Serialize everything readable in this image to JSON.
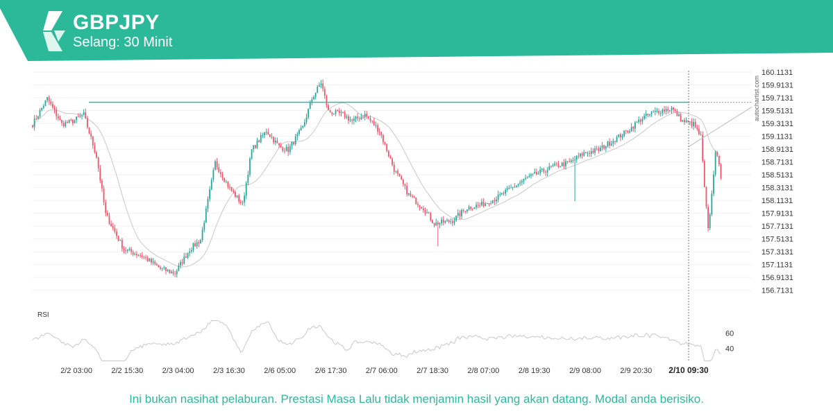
{
  "header": {
    "symbol": "GBPJPY",
    "interval": "Selang: 30 Minit"
  },
  "colors": {
    "brand": "#2bb99a",
    "bull": "#26a69a",
    "bear": "#ef5466",
    "level_line": "#2bb99a",
    "ma_line": "#c8c8c8",
    "rsi_line": "#c8c8c8",
    "text": "#333333"
  },
  "icons": {
    "logo": "autochartist-logo-icon"
  },
  "watermark": "autochartist.com",
  "disclaimer": "Ini bukan nasihat pelaburan. Prestasi Masa Lalu tidak menjamin hasil yang akan datang. Modal anda berisiko.",
  "chart_data": {
    "type": "candlestick",
    "symbol": "GBPJPY",
    "x_tick_labels": [
      "2/2 03:00",
      "2/2 15:30",
      "2/3 04:00",
      "2/3 16:30",
      "2/6 05:00",
      "2/6 17:30",
      "2/7 06:00",
      "2/7 18:30",
      "2/8 07:00",
      "2/8 19:30",
      "2/9 08:00",
      "2/9 20:30"
    ],
    "x_current_label": "2/10 09:30",
    "y_tick_labels": [
      "160.1131",
      "159.9131",
      "159.7131",
      "159.5131",
      "159.3131",
      "159.1131",
      "158.9131",
      "158.7131",
      "158.5131",
      "158.3131",
      "158.1131",
      "157.9131",
      "157.7131",
      "157.5131",
      "157.3131",
      "157.1131",
      "156.9131",
      "156.7131"
    ],
    "ylim": [
      156.6131,
      160.1131
    ],
    "level_line": 159.643,
    "current_price": 158.5,
    "close_path": [
      [
        0,
        159.3
      ],
      [
        8,
        159.7
      ],
      [
        16,
        159.3
      ],
      [
        22,
        159.35
      ],
      [
        28,
        159.45
      ],
      [
        35,
        158.8
      ],
      [
        40,
        157.9
      ],
      [
        50,
        157.35
      ],
      [
        60,
        157.25
      ],
      [
        70,
        157.05
      ],
      [
        78,
        156.98
      ],
      [
        86,
        157.35
      ],
      [
        92,
        157.5
      ],
      [
        100,
        158.7
      ],
      [
        108,
        158.3
      ],
      [
        115,
        158.05
      ],
      [
        120,
        158.9
      ],
      [
        128,
        159.2
      ],
      [
        135,
        158.95
      ],
      [
        140,
        158.9
      ],
      [
        148,
        159.25
      ],
      [
        153,
        159.7
      ],
      [
        158,
        159.95
      ],
      [
        162,
        159.5
      ],
      [
        170,
        159.45
      ],
      [
        175,
        159.35
      ],
      [
        182,
        159.45
      ],
      [
        190,
        159.2
      ],
      [
        198,
        158.6
      ],
      [
        206,
        158.2
      ],
      [
        214,
        158.0
      ],
      [
        220,
        157.75
      ],
      [
        230,
        157.8
      ],
      [
        238,
        158.0
      ],
      [
        246,
        158.05
      ],
      [
        254,
        158.15
      ],
      [
        262,
        158.3
      ],
      [
        270,
        158.45
      ],
      [
        278,
        158.55
      ],
      [
        286,
        158.65
      ],
      [
        294,
        158.7
      ],
      [
        302,
        158.85
      ],
      [
        310,
        158.9
      ],
      [
        318,
        159.05
      ],
      [
        326,
        159.2
      ],
      [
        334,
        159.4
      ],
      [
        342,
        159.5
      ],
      [
        350,
        159.55
      ],
      [
        356,
        159.35
      ],
      [
        362,
        159.3
      ],
      [
        366,
        159.1
      ],
      [
        368,
        158.3
      ],
      [
        370,
        157.65
      ],
      [
        372,
        158.2
      ],
      [
        374,
        158.9
      ],
      [
        377,
        158.5
      ]
    ],
    "indicators": [
      {
        "name": "RSI",
        "y_tick_labels": [
          "60",
          "40"
        ],
        "ylim": [
          20,
          80
        ]
      }
    ]
  }
}
